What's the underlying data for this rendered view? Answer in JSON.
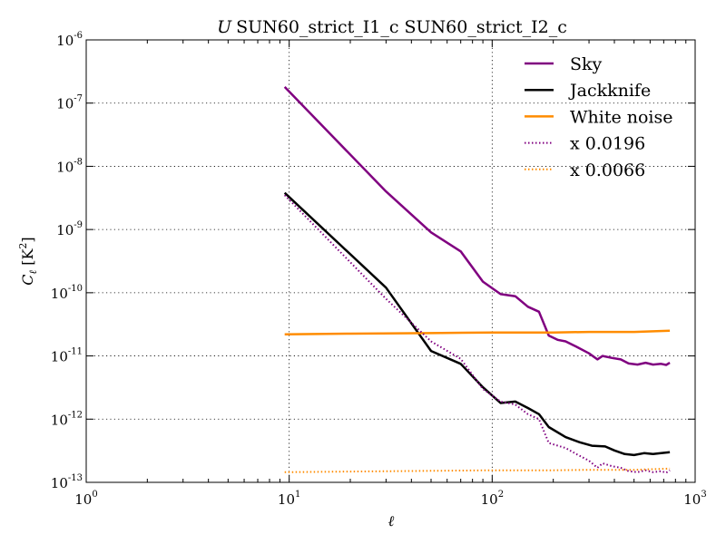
{
  "chart_data": {
    "type": "line",
    "title_symbol": "U",
    "title_rest": "SUN60_strict_I1_c SUN60_strict_I2_c",
    "xlabel": "ℓ",
    "ylabel_main": "C",
    "ylabel_sub": "ℓ",
    "ylabel_unit_open": " [K",
    "ylabel_unit_exp": "2",
    "ylabel_unit_close": "]",
    "xscale": "log",
    "yscale": "log",
    "xlim": [
      1,
      1000
    ],
    "ylim": [
      1e-13,
      1e-06
    ],
    "grid": true,
    "legend_position": "top-right",
    "x_ticks": [
      {
        "value": 1,
        "base": "10",
        "exp": "0"
      },
      {
        "value": 10,
        "base": "10",
        "exp": "1"
      },
      {
        "value": 100,
        "base": "10",
        "exp": "2"
      },
      {
        "value": 1000,
        "base": "10",
        "exp": "3"
      }
    ],
    "y_ticks": [
      {
        "value": 1e-13,
        "base": "10",
        "exp": "-13"
      },
      {
        "value": 1e-12,
        "base": "10",
        "exp": "-12"
      },
      {
        "value": 1e-11,
        "base": "10",
        "exp": "-11"
      },
      {
        "value": 1e-10,
        "base": "10",
        "exp": "-10"
      },
      {
        "value": 1e-09,
        "base": "10",
        "exp": "-9"
      },
      {
        "value": 1e-08,
        "base": "10",
        "exp": "-8"
      },
      {
        "value": 1e-07,
        "base": "10",
        "exp": "-7"
      },
      {
        "value": 1e-06,
        "base": "10",
        "exp": "-6"
      }
    ],
    "series": [
      {
        "name": "Sky",
        "color": "#800080",
        "style": "solid",
        "points": [
          [
            9.5,
            1.8e-07
          ],
          [
            30,
            4e-09
          ],
          [
            50,
            9e-10
          ],
          [
            70,
            4.5e-10
          ],
          [
            90,
            1.5e-10
          ],
          [
            110,
            9.5e-11
          ],
          [
            130,
            8.8e-11
          ],
          [
            150,
            6e-11
          ],
          [
            170,
            5e-11
          ],
          [
            190,
            2.1e-11
          ],
          [
            210,
            1.8e-11
          ],
          [
            230,
            1.7e-11
          ],
          [
            260,
            1.4e-11
          ],
          [
            300,
            1.1e-11
          ],
          [
            330,
            8.8e-12
          ],
          [
            350,
            1e-11
          ],
          [
            390,
            9.3e-12
          ],
          [
            430,
            8.8e-12
          ],
          [
            470,
            7.6e-12
          ],
          [
            520,
            7.3e-12
          ],
          [
            570,
            7.8e-12
          ],
          [
            620,
            7.3e-12
          ],
          [
            680,
            7.5e-12
          ],
          [
            720,
            7.2e-12
          ],
          [
            750,
            7.8e-12
          ]
        ]
      },
      {
        "name": "Jackknife",
        "color": "#000000",
        "style": "solid",
        "points": [
          [
            9.5,
            3.8e-09
          ],
          [
            30,
            1.2e-10
          ],
          [
            50,
            1.2e-11
          ],
          [
            70,
            7.5e-12
          ],
          [
            90,
            3.2e-12
          ],
          [
            110,
            1.8e-12
          ],
          [
            130,
            1.9e-12
          ],
          [
            150,
            1.5e-12
          ],
          [
            170,
            1.2e-12
          ],
          [
            190,
            7.5e-13
          ],
          [
            230,
            5.2e-13
          ],
          [
            270,
            4.3e-13
          ],
          [
            310,
            3.8e-13
          ],
          [
            360,
            3.7e-13
          ],
          [
            400,
            3.2e-13
          ],
          [
            450,
            2.8e-13
          ],
          [
            500,
            2.7e-13
          ],
          [
            560,
            2.9e-13
          ],
          [
            620,
            2.8e-13
          ],
          [
            680,
            2.9e-13
          ],
          [
            750,
            3e-13
          ]
        ]
      },
      {
        "name": "White noise",
        "color": "#ff8c00",
        "style": "solid",
        "points": [
          [
            9.5,
            2.2e-11
          ],
          [
            20,
            2.25e-11
          ],
          [
            50,
            2.3e-11
          ],
          [
            100,
            2.35e-11
          ],
          [
            200,
            2.35e-11
          ],
          [
            300,
            2.4e-11
          ],
          [
            500,
            2.4e-11
          ],
          [
            750,
            2.5e-11
          ]
        ]
      },
      {
        "name": "x 0.0196",
        "color": "#800080",
        "style": "dotted",
        "points": [
          [
            9.5,
            3.5e-09
          ],
          [
            30,
            8e-11
          ],
          [
            50,
            1.7e-11
          ],
          [
            70,
            9e-12
          ],
          [
            90,
            3e-12
          ],
          [
            110,
            1.9e-12
          ],
          [
            130,
            1.7e-12
          ],
          [
            150,
            1.2e-12
          ],
          [
            170,
            1e-12
          ],
          [
            190,
            4.2e-13
          ],
          [
            230,
            3.5e-13
          ],
          [
            260,
            2.8e-13
          ],
          [
            300,
            2.2e-13
          ],
          [
            330,
            1.7e-13
          ],
          [
            350,
            2e-13
          ],
          [
            390,
            1.8e-13
          ],
          [
            430,
            1.7e-13
          ],
          [
            470,
            1.5e-13
          ],
          [
            520,
            1.45e-13
          ],
          [
            570,
            1.55e-13
          ],
          [
            620,
            1.45e-13
          ],
          [
            680,
            1.5e-13
          ],
          [
            720,
            1.42e-13
          ],
          [
            750,
            1.55e-13
          ]
        ]
      },
      {
        "name": "x 0.0066",
        "color": "#ff8c00",
        "style": "dotted",
        "points": [
          [
            9.5,
            1.45e-13
          ],
          [
            20,
            1.48e-13
          ],
          [
            50,
            1.52e-13
          ],
          [
            100,
            1.55e-13
          ],
          [
            200,
            1.55e-13
          ],
          [
            300,
            1.58e-13
          ],
          [
            500,
            1.58e-13
          ],
          [
            750,
            1.65e-13
          ]
        ]
      }
    ]
  }
}
